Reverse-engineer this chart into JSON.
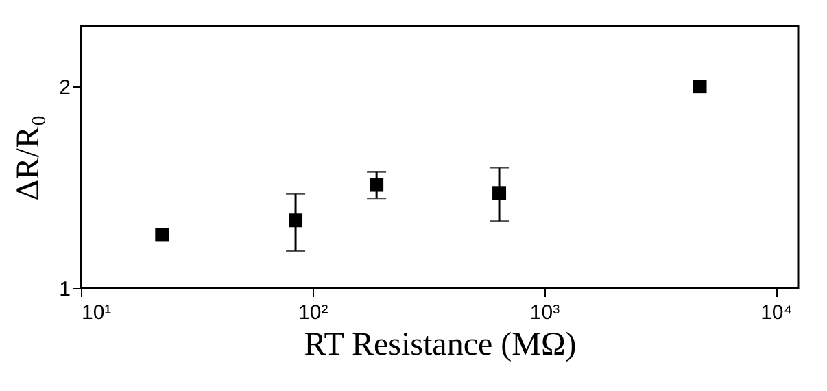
{
  "chart_data": {
    "type": "scatter",
    "xlabel": "RT Resistance (MΩ)",
    "ylabel": "ΔR/R₀",
    "log": "x",
    "x": [
      22.4,
      84.5,
      189,
      640,
      4700
    ],
    "series": [
      {
        "color": "#000000",
        "values": [
          1.264,
          1.336,
          1.512,
          1.472,
          2.0
        ],
        "errors": [
          null,
          [
            1.184,
            1.467
          ],
          [
            1.445,
            1.576
          ],
          [
            1.333,
            1.597
          ],
          null
        ]
      }
    ],
    "xlim": [
      10,
      12500
    ],
    "xticks": [
      {
        "value": 10,
        "label": "10¹"
      },
      {
        "value": 100,
        "label": "10²"
      },
      {
        "value": 1000,
        "label": "10³"
      },
      {
        "value": 10000,
        "label": "10⁴"
      }
    ],
    "ylim": [
      1,
      2.3
    ],
    "yticks": [
      1,
      2
    ],
    "marker": "square",
    "grid": false
  }
}
